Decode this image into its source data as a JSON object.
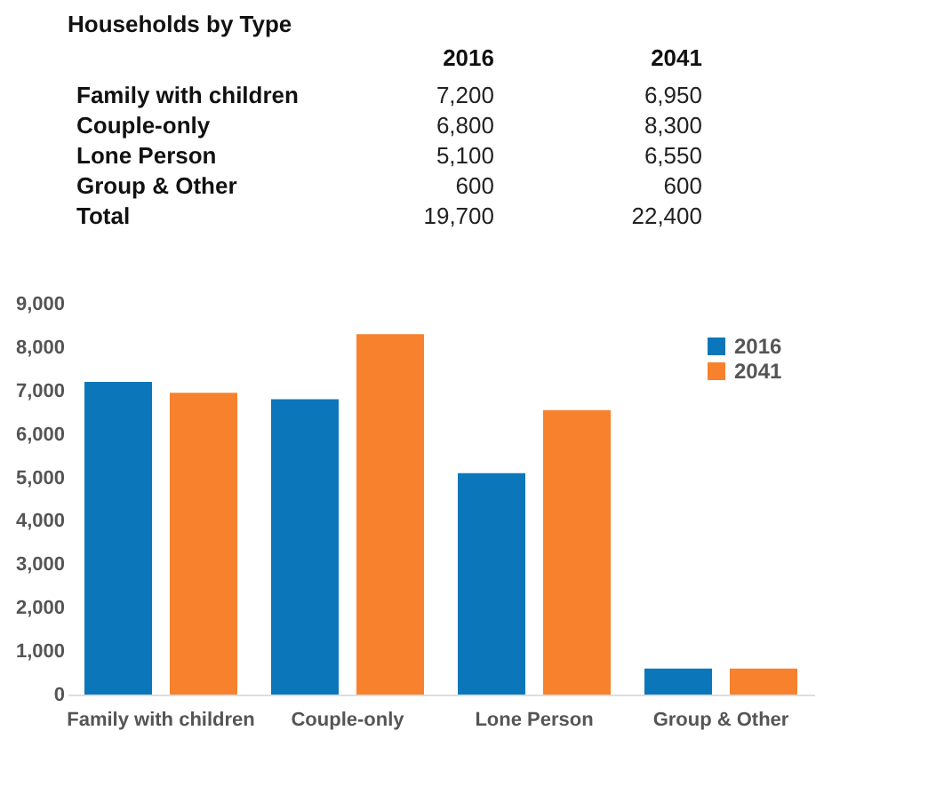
{
  "chart_data": [
    {
      "type": "other",
      "title": "Households by Type",
      "categories": [
        "Family with children",
        "Couple-only",
        "Lone Person",
        "Group & Other",
        "Total"
      ],
      "series": [
        {
          "name": "2016",
          "values": [
            7200,
            6800,
            5100,
            600,
            19700
          ],
          "value_labels": [
            "7,200",
            "6,800",
            "5,100",
            "600",
            "19,700"
          ]
        },
        {
          "name": "2041",
          "values": [
            6950,
            8300,
            6550,
            600,
            22400
          ],
          "value_labels": [
            "6,950",
            "8,300",
            "6,550",
            "600",
            "22,400"
          ]
        }
      ]
    },
    {
      "type": "bar",
      "categories": [
        "Family with children",
        "Couple-only",
        "Lone Person",
        "Group & Other"
      ],
      "series": [
        {
          "name": "2016",
          "color": "#0b77ba",
          "values": [
            7200,
            6800,
            5100,
            600
          ]
        },
        {
          "name": "2041",
          "color": "#f7812d",
          "values": [
            6950,
            8300,
            6550,
            600
          ]
        }
      ],
      "ylim": [
        0,
        9000
      ],
      "yticks": [
        {
          "value": 0,
          "label": "0"
        },
        {
          "value": 1000,
          "label": "1,000"
        },
        {
          "value": 2000,
          "label": "2,000"
        },
        {
          "value": 3000,
          "label": "3,000"
        },
        {
          "value": 4000,
          "label": "4,000"
        },
        {
          "value": 5000,
          "label": "5,000"
        },
        {
          "value": 6000,
          "label": "6,000"
        },
        {
          "value": 7000,
          "label": "7,000"
        },
        {
          "value": 8000,
          "label": "8,000"
        },
        {
          "value": 9000,
          "label": "9,000"
        }
      ],
      "grid": false,
      "legend": "top right"
    }
  ]
}
